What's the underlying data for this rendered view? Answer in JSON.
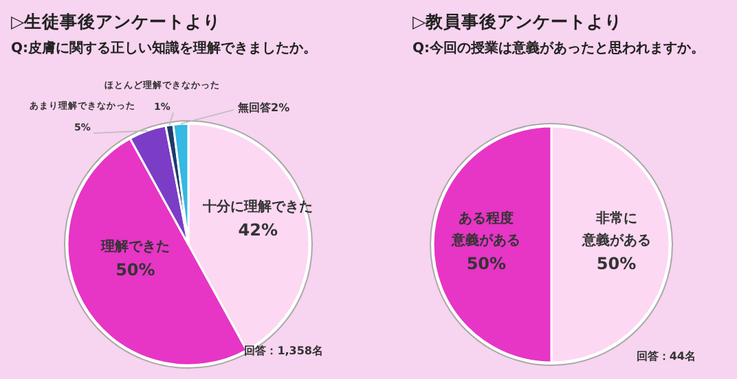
{
  "chart_data": [
    {
      "type": "pie",
      "title": "▷生徒事後アンケートより",
      "subtitle": "Q:皮膚に関する正しい知識を理解できましたか。",
      "categories": [
        "十分に理解できた",
        "理解できた",
        "あまり理解できなかった",
        "ほとんど理解できなかった",
        "無回答"
      ],
      "values": [
        42,
        50,
        5,
        1,
        2
      ],
      "colors": [
        "#fcd8f3",
        "#e735c6",
        "#7b3dc6",
        "#1f3b6b",
        "#35b8e2"
      ],
      "value_labels": [
        "42%",
        "50%",
        "5%",
        "1%",
        "2%"
      ],
      "annotations": [
        "回答：1,358名"
      ],
      "legend": false
    },
    {
      "type": "pie",
      "title": "▷教員事後アンケートより",
      "subtitle": "Q:今回の授業は意義があったと思われますか。",
      "categories": [
        "非常に意義がある",
        "ある程度意義がある"
      ],
      "values": [
        50,
        50
      ],
      "colors": [
        "#fcd8f3",
        "#e735c6"
      ],
      "value_labels": [
        "50%",
        "50%"
      ],
      "annotations": [
        "回答：44名"
      ],
      "legend": false
    }
  ]
}
